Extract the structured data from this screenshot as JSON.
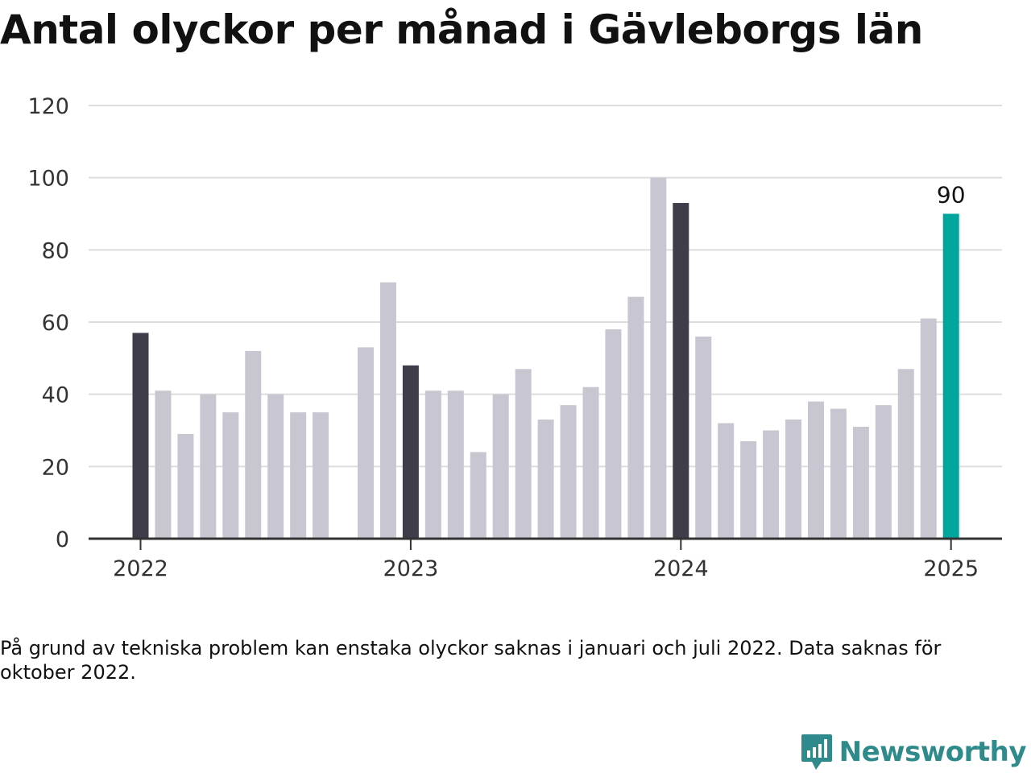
{
  "title": "Antal olyckor per månad i Gävleborgs län",
  "note": "På grund av tekniska problem kan enstaka olyckor saknas i januari och juli 2022. Data saknas för oktober 2022.",
  "logo": {
    "text": "Newsworthy",
    "icon": "newsworthy-chart-bubble-icon"
  },
  "colors": {
    "bar_default": "#c8c7d1",
    "bar_january": "#3f3d4a",
    "bar_latest": "#00a69c",
    "grid": "#dddddd",
    "axis": "#333333"
  },
  "chart_data": {
    "type": "bar",
    "title": "Antal olyckor per månad i Gävleborgs län",
    "xlabel": "",
    "ylabel": "",
    "ylim": [
      0,
      120
    ],
    "yticks": [
      "0",
      "20",
      "40",
      "60",
      "80",
      "100",
      "120"
    ],
    "xticks": [
      "2022",
      "2023",
      "2024",
      "2025"
    ],
    "grid": true,
    "categories": [
      "2022-01",
      "2022-02",
      "2022-03",
      "2022-04",
      "2022-05",
      "2022-06",
      "2022-07",
      "2022-08",
      "2022-09",
      "2022-10",
      "2022-11",
      "2022-12",
      "2023-01",
      "2023-02",
      "2023-03",
      "2023-04",
      "2023-05",
      "2023-06",
      "2023-07",
      "2023-08",
      "2023-09",
      "2023-10",
      "2023-11",
      "2023-12",
      "2024-01",
      "2024-02",
      "2024-03",
      "2024-04",
      "2024-05",
      "2024-06",
      "2024-07",
      "2024-08",
      "2024-09",
      "2024-10",
      "2024-11",
      "2024-12",
      "2025-01"
    ],
    "values": [
      57,
      41,
      29,
      40,
      35,
      52,
      40,
      35,
      35,
      null,
      53,
      71,
      48,
      41,
      41,
      24,
      40,
      47,
      33,
      37,
      42,
      58,
      67,
      100,
      93,
      56,
      32,
      27,
      30,
      33,
      38,
      36,
      31,
      37,
      47,
      61,
      90
    ],
    "annotations": [
      {
        "category": "2025-01",
        "label": "90"
      }
    ]
  }
}
